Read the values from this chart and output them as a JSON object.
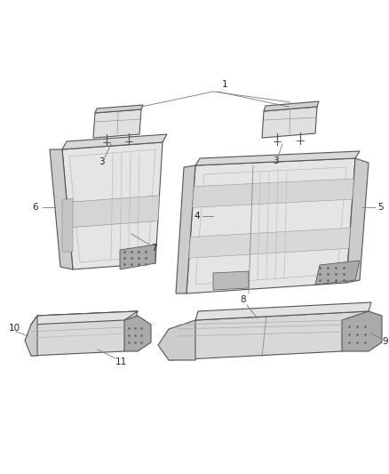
{
  "bg_color": "#ffffff",
  "lc": "#555555",
  "lc_thin": "#777777",
  "fc_main": "#e8e8e8",
  "fc_side": "#d0d0d0",
  "fc_dark": "#b8b8b8",
  "fc_plastic": "#aaaaaa",
  "figsize": [
    4.38,
    5.33
  ],
  "dpi": 100,
  "label_fs": 7.5,
  "label_color": "#222222",
  "callout_color": "#777777"
}
